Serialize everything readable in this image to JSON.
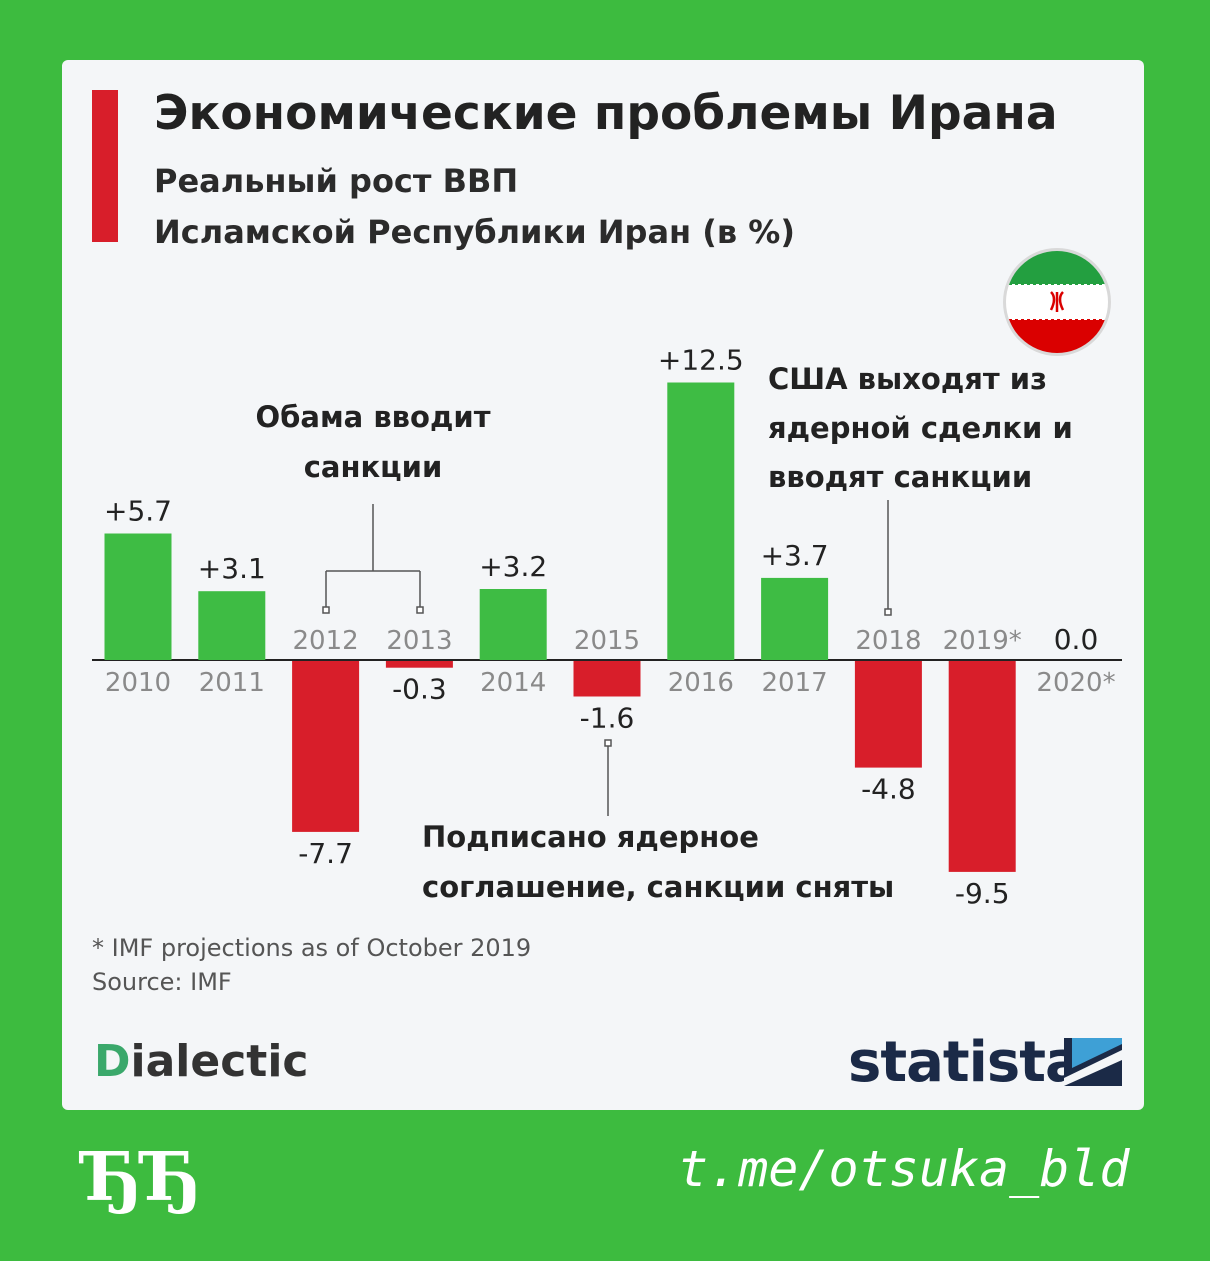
{
  "header": {
    "title": "Экономические проблемы Ирана",
    "subtitle_line1": "Реальный рост ВВП",
    "subtitle_line2": "Исламской Республики Иран (в %)"
  },
  "colors": {
    "positive": "#3ebc44",
    "negative": "#d81e2a",
    "accent": "#d81e2a",
    "background": "#3dbb3f"
  },
  "chart_data": {
    "type": "bar",
    "categories": [
      "2010",
      "2011",
      "2012",
      "2013",
      "2014",
      "2015",
      "2016",
      "2017",
      "2018",
      "2019*",
      "2020*"
    ],
    "values": [
      5.7,
      3.1,
      -7.7,
      -0.3,
      3.2,
      -1.6,
      12.5,
      3.7,
      -4.8,
      -9.5,
      0.0
    ],
    "value_labels": [
      "+5.7",
      "+3.1",
      "-7.7",
      "-0.3",
      "+3.2",
      "-1.6",
      "+12.5",
      "+3.7",
      "-4.8",
      "-9.5",
      "0.0"
    ],
    "ylim": [
      -10,
      13
    ],
    "grid": false,
    "legend": "none",
    "annotations": [
      {
        "text_lines": [
          "Обама вводит",
          "санкции"
        ],
        "years": [
          "2012",
          "2013"
        ]
      },
      {
        "text_lines": [
          "Подписано ядерное",
          "соглашение, санкции сняты"
        ],
        "years": [
          "2015"
        ]
      },
      {
        "text_lines": [
          "США выходят из",
          "ядерной сделки и",
          "вводят санкции"
        ],
        "years": [
          "2018"
        ]
      }
    ]
  },
  "footnotes": {
    "projection_note": "* IMF projections as of October 2019",
    "source": "Source: IMF"
  },
  "branding": {
    "dialectic_first": "D",
    "dialectic_rest": "ialectic",
    "statista": "statista",
    "statista_icon": "statista-logo-icon",
    "flag_icon": "iran-flag-icon"
  },
  "footer": {
    "glyph": "ЂЂ",
    "link": "t.me/otsuka_bld"
  }
}
